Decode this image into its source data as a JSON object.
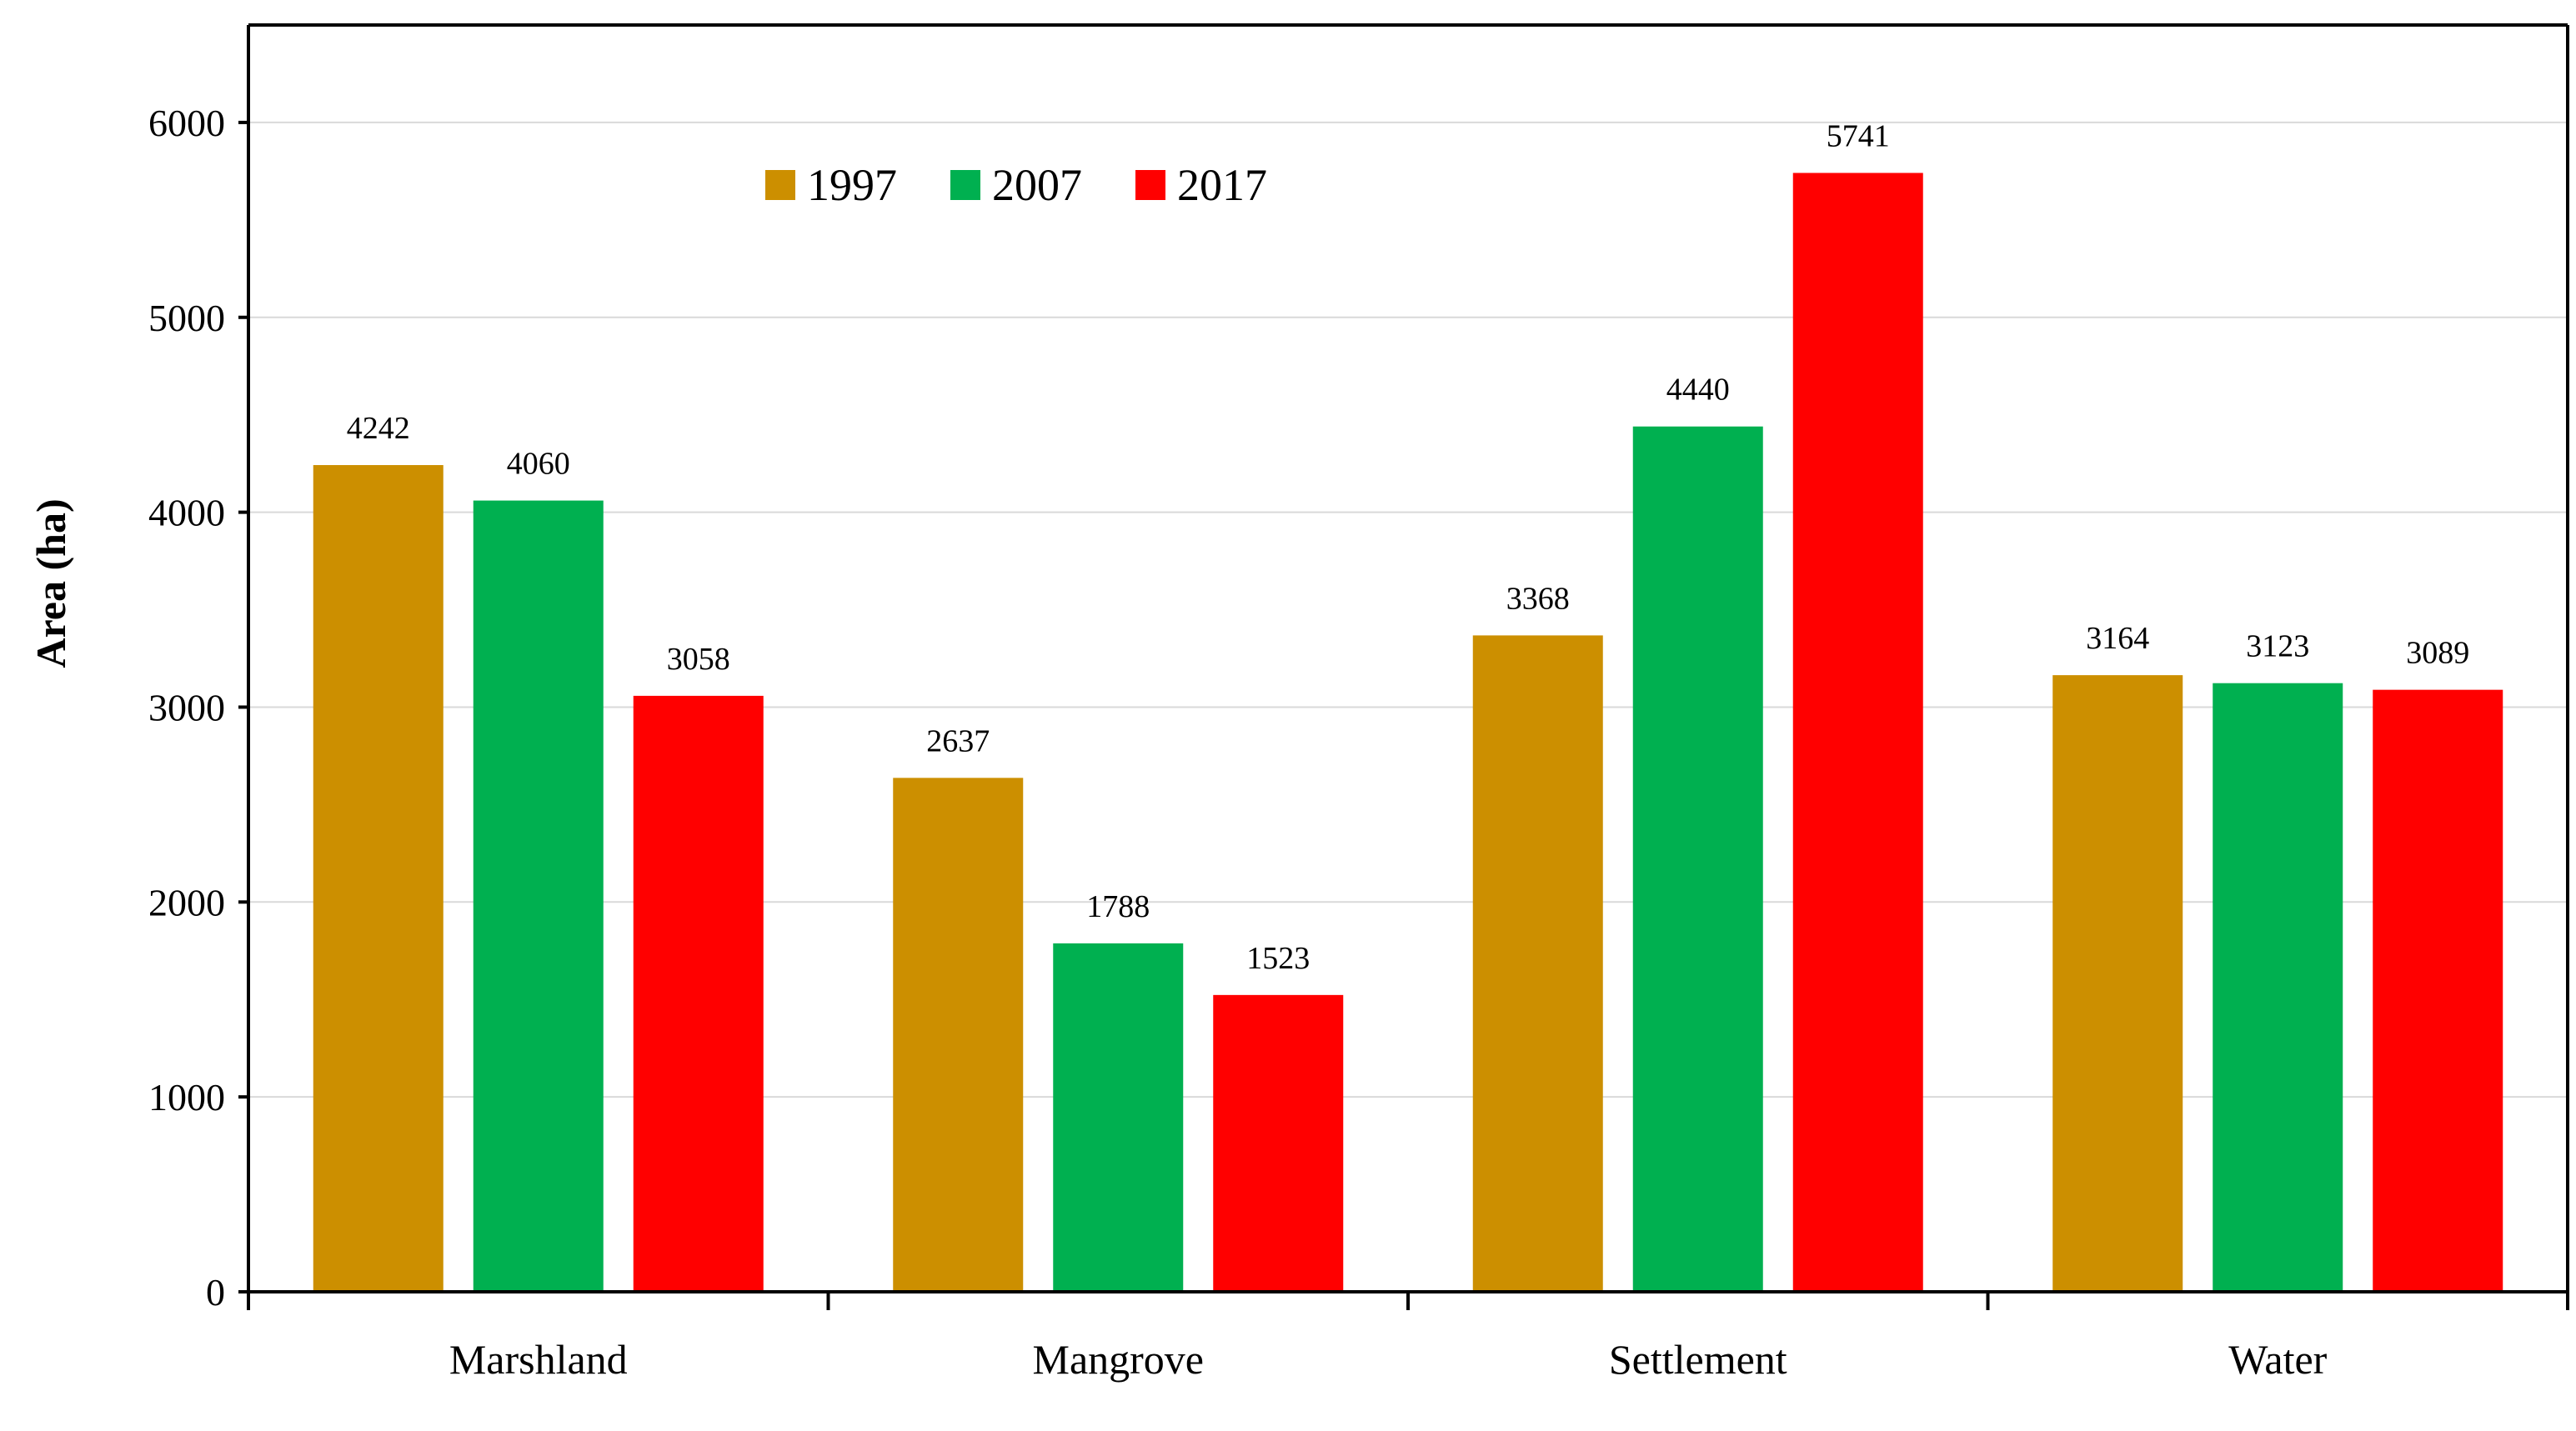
{
  "chart_data": {
    "type": "bar",
    "title": "",
    "xlabel": "",
    "ylabel": "Area (ha)",
    "categories": [
      "Marshland",
      "Mangrove",
      "Settlement",
      "Water"
    ],
    "series": [
      {
        "name": "1997",
        "color": "#cc8f00",
        "values": [
          4242,
          2637,
          3368,
          3164
        ]
      },
      {
        "name": "2007",
        "color": "#00b050",
        "values": [
          4060,
          1788,
          4440,
          3123
        ]
      },
      {
        "name": "2017",
        "color": "#ff0000",
        "values": [
          3058,
          1523,
          5741,
          3089
        ]
      }
    ],
    "yticks": [
      0,
      1000,
      2000,
      3000,
      4000,
      5000,
      6000
    ],
    "ylim": [
      0,
      6500
    ],
    "grid": true,
    "legend_position": "top-left",
    "data_labels": true
  }
}
